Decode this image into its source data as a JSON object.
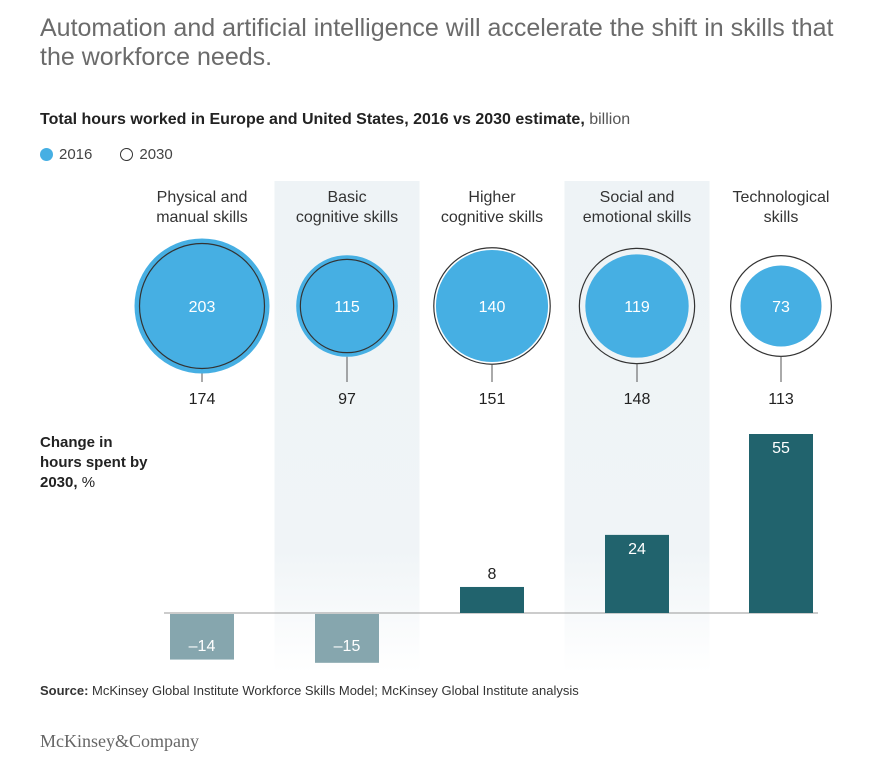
{
  "headline": "Automation and artificial intelligence will accelerate the shift in skills that the workforce needs.",
  "subtitle": {
    "main": "Total hours worked in Europe and United States, 2016 vs 2030 estimate,",
    "unit": "billion"
  },
  "legend": {
    "y2016": "2016",
    "y2030": "2030"
  },
  "side_label": {
    "main": "Change in hours spent by 2030,",
    "unit": "%"
  },
  "source": {
    "label": "Source:",
    "text": "McKinsey Global Institute Workforce Skills Model; McKinsey Global Institute analysis"
  },
  "brand": "McKinsey&Company",
  "colors": {
    "fill_2016": "#46afe3",
    "bar_positive": "#21636d",
    "bar_negative": "#86a6ae",
    "shade": "#eef3f6"
  },
  "chart_data": [
    {
      "type": "bubble",
      "title": "Total hours worked in Europe and United States, 2016 vs 2030 estimate, billion",
      "categories": [
        "Physical and manual skills",
        "Basic cognitive skills",
        "Higher cognitive skills",
        "Social and emotional skills",
        "Technological skills"
      ],
      "category_lines": [
        [
          "Physical and",
          "manual skills"
        ],
        [
          "Basic",
          "cognitive skills"
        ],
        [
          "Higher",
          "cognitive skills"
        ],
        [
          "Social and",
          "emotional skills"
        ],
        [
          "Technological",
          "skills"
        ]
      ],
      "series": [
        {
          "name": "2016",
          "values": [
            203,
            115,
            140,
            119,
            73
          ]
        },
        {
          "name": "2030",
          "values": [
            174,
            97,
            151,
            148,
            113
          ]
        }
      ]
    },
    {
      "type": "bar",
      "title": "Change in hours spent by 2030, %",
      "categories": [
        "Physical and manual skills",
        "Basic cognitive skills",
        "Higher cognitive skills",
        "Social and emotional skills",
        "Technological skills"
      ],
      "values": [
        -14,
        -15,
        8,
        24,
        55
      ],
      "labels": [
        "–14",
        "–15",
        "8",
        "24",
        "55"
      ]
    }
  ]
}
